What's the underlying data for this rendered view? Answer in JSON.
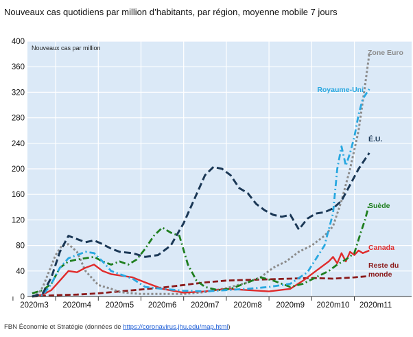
{
  "title": "Nouveaux cas quotidiens par million d’habitants, par région, moyenne mobile 7 jours",
  "source_prefix": "FBN Économie et Stratégie (données de ",
  "source_link": "https://coronavirus.jhu.edu/map.html",
  "source_suffix": ")",
  "chart_data": {
    "type": "line",
    "title": "Nouveaux cas quotidiens par million d’habitants, par région, moyenne mobile 7 jours",
    "ylabel": "Nouveaux cas par million",
    "ylim": [
      0,
      400
    ],
    "yticks": [
      0,
      40,
      80,
      120,
      160,
      200,
      240,
      280,
      320,
      360,
      400
    ],
    "xlim": [
      0,
      8.5
    ],
    "categories": [
      "2020m3",
      "2020m4",
      "2020m5",
      "2020m6",
      "2020m7",
      "2020m8",
      "2020m9",
      "2020m10",
      "2020m11"
    ],
    "grid": true,
    "legend": "labels at line ends, right",
    "colors": {
      "zone_euro": "#8c8c8c",
      "royaume_uni": "#29a8e0",
      "eu": "#1b3856",
      "suede": "#1e7e1e",
      "canada": "#e02b2b",
      "reste": "#8b1a1a",
      "plot_bg": "#dbe9f7",
      "grid": "#ffffff"
    },
    "series": [
      {
        "name": "Zone Euro",
        "key": "zone_euro",
        "x": [
          -0.05,
          0.1,
          0.2,
          0.35,
          0.5,
          0.65,
          0.8,
          1.0,
          1.2,
          1.5,
          1.8,
          2.0,
          2.3,
          2.5,
          3.0,
          3.5,
          4.0,
          4.5,
          5.0,
          5.3,
          5.6,
          5.9,
          6.2,
          6.5,
          6.8,
          7.0,
          7.2,
          7.4,
          7.6,
          7.75,
          7.85
        ],
        "values": [
          0,
          5,
          15,
          40,
          65,
          80,
          82,
          70,
          40,
          18,
          12,
          7,
          5,
          4,
          4,
          4,
          7,
          13,
          22,
          30,
          45,
          55,
          70,
          80,
          95,
          110,
          150,
          200,
          260,
          330,
          380
        ]
      },
      {
        "name": "Royaume-Uni",
        "key": "royaume_uni",
        "x": [
          -0.05,
          0.2,
          0.4,
          0.6,
          0.8,
          1.0,
          1.2,
          1.4,
          1.6,
          1.8,
          2.0,
          2.3,
          2.6,
          3.0,
          3.5,
          4.0,
          4.5,
          5.0,
          5.5,
          6.0,
          6.4,
          6.8,
          7.0,
          7.1,
          7.2,
          7.3,
          7.4,
          7.5,
          7.6,
          7.7,
          7.85
        ],
        "values": [
          0,
          2,
          20,
          45,
          60,
          65,
          70,
          68,
          55,
          40,
          35,
          28,
          15,
          12,
          9,
          8,
          10,
          12,
          15,
          20,
          38,
          80,
          130,
          200,
          235,
          205,
          225,
          250,
          285,
          310,
          325
        ]
      },
      {
        "name": "É.U.",
        "key": "eu",
        "x": [
          -0.05,
          0.2,
          0.4,
          0.6,
          0.8,
          1.0,
          1.2,
          1.4,
          1.6,
          1.8,
          2.0,
          2.3,
          2.6,
          2.9,
          3.2,
          3.5,
          3.8,
          4.0,
          4.2,
          4.4,
          4.6,
          4.8,
          5.0,
          5.2,
          5.4,
          5.6,
          5.8,
          6.0,
          6.2,
          6.4,
          6.6,
          6.8,
          7.0,
          7.2,
          7.4,
          7.6,
          7.85
        ],
        "values": [
          0,
          5,
          30,
          70,
          95,
          90,
          85,
          88,
          82,
          75,
          70,
          68,
          62,
          65,
          80,
          115,
          160,
          190,
          203,
          200,
          190,
          170,
          162,
          145,
          135,
          128,
          125,
          128,
          105,
          122,
          130,
          132,
          138,
          150,
          175,
          200,
          225
        ]
      },
      {
        "name": "Suède",
        "key": "suede",
        "x": [
          -0.05,
          0.2,
          0.4,
          0.6,
          0.8,
          1.0,
          1.2,
          1.4,
          1.6,
          1.8,
          2.0,
          2.2,
          2.4,
          2.6,
          2.8,
          3.0,
          3.2,
          3.4,
          3.6,
          3.8,
          4.0,
          4.3,
          4.6,
          5.0,
          5.3,
          5.6,
          6.0,
          6.3,
          6.6,
          6.9,
          7.1,
          7.3,
          7.5,
          7.65,
          7.75,
          7.85
        ],
        "values": [
          5,
          10,
          20,
          45,
          55,
          58,
          60,
          62,
          55,
          50,
          55,
          50,
          58,
          75,
          95,
          108,
          100,
          95,
          50,
          25,
          15,
          10,
          12,
          22,
          30,
          25,
          15,
          20,
          30,
          40,
          50,
          58,
          68,
          100,
          120,
          145
        ]
      },
      {
        "name": "Canada",
        "key": "canada",
        "x": [
          -0.05,
          0.2,
          0.4,
          0.6,
          0.8,
          1.0,
          1.2,
          1.4,
          1.6,
          1.8,
          2.0,
          2.3,
          2.6,
          3.0,
          3.5,
          4.0,
          4.5,
          5.0,
          5.5,
          6.0,
          6.3,
          6.6,
          6.9,
          7.0,
          7.1,
          7.2,
          7.3,
          7.4,
          7.5,
          7.6,
          7.7,
          7.85
        ],
        "values": [
          0,
          3,
          10,
          25,
          40,
          38,
          45,
          50,
          40,
          35,
          33,
          30,
          22,
          12,
          6,
          8,
          12,
          10,
          8,
          12,
          25,
          40,
          55,
          62,
          52,
          68,
          55,
          70,
          65,
          72,
          68,
          72
        ]
      },
      {
        "name": "Reste du monde",
        "key": "reste",
        "x": [
          -0.05,
          0.5,
          1.0,
          1.5,
          2.0,
          2.5,
          3.0,
          3.5,
          4.0,
          4.5,
          5.0,
          5.5,
          6.0,
          6.5,
          7.0,
          7.5,
          7.85
        ],
        "values": [
          0,
          2,
          3,
          5,
          8,
          11,
          14,
          18,
          22,
          25,
          26,
          27,
          28,
          29,
          28,
          30,
          32
        ]
      }
    ]
  }
}
